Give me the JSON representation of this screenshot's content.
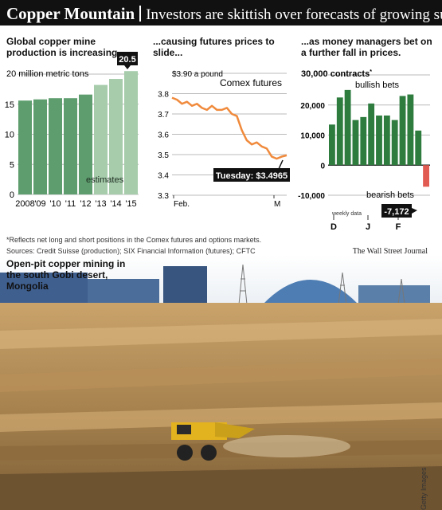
{
  "header": {
    "brand": "Copper Mountain",
    "headline": "Investors are skittish over forecasts of growing supplies"
  },
  "panels": {
    "production": {
      "title": "Global copper mine production is increasing...",
      "unit_label": "20 million metric tons",
      "estimates_label": "estimates",
      "highlight": "20.5"
    },
    "futures": {
      "title": "...causing futures prices to slide...",
      "unit_label": "$3.90 a pound",
      "series_label": "Comex futures",
      "callout": "Tuesday: $3.4965"
    },
    "bets": {
      "title": "...as money managers bet on a further fall in prices.",
      "unit_label": "30,000 contracts",
      "unit_marker": "*",
      "bullish_label": "bullish bets",
      "bearish_label": "bearish bets",
      "weekly_label": "weekly data",
      "callout": "-7,172"
    }
  },
  "footnote": "*Reflects net long and short positions in the Comex futures and options markets.",
  "sources": "Sources: Credit Suisse (production); SIX Financial Information (futures); CFTC",
  "publisher": "The Wall Street Journal",
  "photo": {
    "caption": "Open-pit copper mining in the south Gobi desert, Mongolia",
    "credit": "Getty Images"
  },
  "colors": {
    "header_bg": "#111111",
    "production_bar": "#5e9e6e",
    "estimate_bar": "#a6ccab",
    "futures_line": "#f08a3c",
    "bullish_bar": "#2e7d3f",
    "bearish_bar": "#e25b52"
  },
  "chart_data": [
    {
      "type": "bar",
      "categories": [
        "2008",
        "'09",
        "'10",
        "'11",
        "'12",
        "'13",
        "'14",
        "'15"
      ],
      "values": [
        15.6,
        15.8,
        16.0,
        16.0,
        16.6,
        18.2,
        19.2,
        20.5
      ],
      "estimates_from": "'13",
      "ylim": [
        0,
        20
      ],
      "yticks": [
        0,
        5,
        10,
        15,
        20
      ]
    },
    {
      "type": "line",
      "series": [
        {
          "values": [
            3.78,
            3.77,
            3.75,
            3.76,
            3.74,
            3.75,
            3.73,
            3.72,
            3.74,
            3.72,
            3.72,
            3.73,
            3.7,
            3.69,
            3.62,
            3.57,
            3.55,
            3.56,
            3.54,
            3.53,
            3.49,
            3.48,
            3.49,
            3.4965
          ]
        }
      ],
      "xticks": [
        "Feb.",
        "M"
      ],
      "ylim": [
        3.3,
        3.9
      ],
      "yticks": [
        3.3,
        3.4,
        3.5,
        3.6,
        3.7,
        3.8,
        3.9
      ]
    },
    {
      "type": "bar",
      "values": [
        13500,
        22500,
        25000,
        15000,
        16000,
        20500,
        16500,
        16500,
        15000,
        23000,
        23500,
        11500,
        -7172
      ],
      "xticks": [
        "D",
        "J",
        "F"
      ],
      "ylim": [
        -10000,
        30000
      ],
      "yticks": [
        -10000,
        0,
        10000,
        20000,
        30000
      ],
      "ytick_labels": [
        "-10,000",
        "0",
        "10,000",
        "20,000",
        "30,000"
      ]
    }
  ]
}
